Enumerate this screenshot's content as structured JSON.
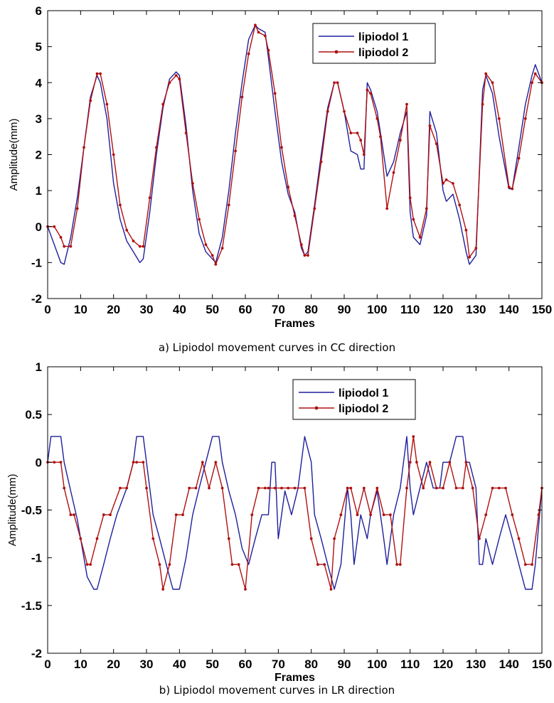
{
  "captions": {
    "a": "a) Lipiodol movement curves in CC direction",
    "b": "b) Lipiodol movement curves in LR direction"
  },
  "colors": {
    "series1": "#1f1f9c",
    "series2": "#b01010",
    "axis": "#000000"
  },
  "chart_data": [
    {
      "type": "line",
      "title": "",
      "xlabel": "Frames",
      "ylabel": "Amplitude(mm)",
      "xlim": [
        0,
        150
      ],
      "ylim": [
        -2,
        6
      ],
      "xticks": [
        0,
        10,
        20,
        30,
        40,
        50,
        60,
        70,
        80,
        90,
        100,
        110,
        120,
        130,
        140,
        150
      ],
      "yticks": [
        -2,
        -1,
        0,
        1,
        2,
        3,
        4,
        5,
        6
      ],
      "grid": false,
      "legend": "top-right",
      "x": [
        0,
        2,
        4,
        5,
        7,
        9,
        11,
        13,
        15,
        16,
        18,
        20,
        22,
        24,
        26,
        28,
        29,
        31,
        33,
        35,
        37,
        39,
        40,
        42,
        44,
        46,
        48,
        50,
        51,
        53,
        55,
        57,
        59,
        61,
        63,
        64,
        66,
        67,
        69,
        71,
        73,
        75,
        77,
        78,
        79,
        81,
        83,
        85,
        87,
        88,
        90,
        92,
        94,
        95,
        96,
        97,
        98,
        100,
        101,
        103,
        105,
        107,
        109,
        110,
        111,
        113,
        115,
        116,
        118,
        120,
        121,
        123,
        125,
        127,
        128,
        130,
        132,
        133,
        135,
        137,
        140,
        141,
        143,
        145,
        147,
        148,
        150
      ],
      "series": [
        {
          "name": "lipiodol 1",
          "values": [
            0,
            -0.5,
            -1.0,
            -1.05,
            -0.3,
            0.8,
            2.2,
            3.6,
            4.2,
            4.0,
            3.0,
            1.2,
            0.2,
            -0.4,
            -0.7,
            -1.0,
            -0.9,
            0.4,
            2.0,
            3.3,
            4.1,
            4.3,
            4.2,
            2.8,
            1.0,
            -0.2,
            -0.7,
            -0.9,
            -1.0,
            -0.3,
            1.0,
            2.6,
            4.0,
            5.2,
            5.6,
            5.5,
            5.4,
            4.7,
            3.2,
            1.8,
            0.9,
            0.4,
            -0.6,
            -0.8,
            -0.7,
            0.6,
            2.0,
            3.3,
            4.0,
            4.0,
            3.2,
            2.1,
            2.0,
            1.6,
            1.6,
            4.0,
            3.8,
            3.2,
            2.6,
            1.4,
            1.8,
            2.6,
            3.2,
            0.4,
            -0.3,
            -0.5,
            0.3,
            3.2,
            2.6,
            1.0,
            0.7,
            0.9,
            0.2,
            -0.7,
            -1.05,
            -0.8,
            3.8,
            4.2,
            3.7,
            2.5,
            1.05,
            1.05,
            2.2,
            3.4,
            4.2,
            4.5,
            4.0
          ]
        },
        {
          "name": "lipiodol 2",
          "values": [
            0,
            0,
            -0.3,
            -0.55,
            -0.55,
            0.5,
            2.2,
            3.5,
            4.25,
            4.25,
            3.4,
            2.0,
            0.6,
            -0.1,
            -0.4,
            -0.55,
            -0.55,
            0.8,
            2.2,
            3.4,
            4.0,
            4.2,
            4.1,
            2.6,
            1.2,
            0.2,
            -0.5,
            -0.8,
            -1.05,
            -0.6,
            0.6,
            2.1,
            3.6,
            4.8,
            5.6,
            5.4,
            5.3,
            4.9,
            3.7,
            2.2,
            1.1,
            0.3,
            -0.5,
            -0.8,
            -0.8,
            0.5,
            1.8,
            3.2,
            4.0,
            4.0,
            3.2,
            2.6,
            2.6,
            2.4,
            2.0,
            3.8,
            3.7,
            3.0,
            2.5,
            0.5,
            1.5,
            2.4,
            3.4,
            0.8,
            0.2,
            -0.3,
            0.5,
            2.8,
            2.3,
            1.2,
            1.3,
            1.2,
            0.6,
            -0.1,
            -0.85,
            -0.6,
            3.4,
            4.25,
            4.0,
            3.0,
            1.1,
            1.05,
            1.9,
            3.0,
            4.0,
            4.25,
            4.0
          ]
        }
      ]
    },
    {
      "type": "line",
      "title": "",
      "xlabel": "Frames",
      "ylabel": "Amplitude(mm)",
      "xlim": [
        0,
        150
      ],
      "ylim": [
        -2,
        1
      ],
      "xticks": [
        0,
        10,
        20,
        30,
        40,
        50,
        60,
        70,
        80,
        90,
        100,
        110,
        120,
        130,
        140,
        150
      ],
      "yticks": [
        -2,
        -1.5,
        -1,
        -0.5,
        0,
        0.5,
        1
      ],
      "grid": false,
      "legend": "top-right",
      "series": [
        {
          "name": "lipiodol 1",
          "x": [
            0,
            1,
            4,
            5,
            7,
            9,
            11,
            12,
            14,
            15,
            17,
            19,
            21,
            24,
            26,
            27,
            29,
            30,
            32,
            34,
            36,
            38,
            40,
            42,
            44,
            46,
            48,
            50,
            52,
            53,
            55,
            57,
            59,
            61,
            63,
            65,
            67,
            68,
            69,
            70,
            72,
            74,
            76,
            78,
            80,
            81,
            83,
            85,
            87,
            89,
            91,
            92,
            93,
            95,
            97,
            98,
            100,
            102,
            103,
            105,
            107,
            108,
            109,
            110,
            111,
            113,
            115,
            117,
            119,
            120,
            122,
            124,
            126,
            127,
            128,
            130,
            131,
            132,
            133,
            135,
            137,
            139,
            141,
            143,
            145,
            147,
            148,
            150
          ],
          "values": [
            0,
            0.27,
            0.27,
            0,
            -0.3,
            -0.6,
            -1.0,
            -1.2,
            -1.33,
            -1.33,
            -1.07,
            -0.8,
            -0.55,
            -0.27,
            0,
            0.27,
            0.27,
            0,
            -0.55,
            -0.8,
            -1.07,
            -1.33,
            -1.33,
            -1.0,
            -0.55,
            -0.27,
            0,
            0.27,
            0.27,
            0,
            -0.3,
            -0.55,
            -0.9,
            -1.07,
            -0.8,
            -0.55,
            -0.55,
            0,
            0,
            -0.8,
            -0.3,
            -0.55,
            -0.27,
            0.27,
            0,
            -0.55,
            -0.8,
            -1.07,
            -1.33,
            -1.07,
            -0.27,
            -0.55,
            -1.07,
            -0.55,
            -0.8,
            -0.55,
            -0.3,
            -0.8,
            -1.07,
            -0.55,
            -0.27,
            0,
            0.27,
            -0.27,
            -0.55,
            -0.27,
            0,
            -0.27,
            -0.27,
            0,
            0,
            0.27,
            0.27,
            0,
            0,
            -0.27,
            -1.07,
            -1.07,
            -0.8,
            -1.07,
            -0.8,
            -0.55,
            -0.8,
            -1.07,
            -1.33,
            -1.33,
            -1.07,
            -0.27
          ]
        },
        {
          "name": "lipiodol 2",
          "x": [
            0,
            2,
            4,
            5,
            7,
            8,
            10,
            12,
            13,
            15,
            17,
            19,
            22,
            24,
            26,
            27,
            29,
            30,
            32,
            34,
            35,
            37,
            39,
            41,
            43,
            45,
            47,
            49,
            51,
            53,
            55,
            56,
            58,
            60,
            62,
            64,
            66,
            67,
            69,
            71,
            73,
            75,
            78,
            80,
            82,
            84,
            86,
            87,
            89,
            91,
            92,
            94,
            96,
            98,
            100,
            102,
            104,
            106,
            107,
            109,
            110,
            111,
            112,
            114,
            116,
            118,
            120,
            122,
            124,
            126,
            127,
            129,
            131,
            133,
            135,
            137,
            139,
            141,
            143,
            145,
            147,
            149,
            150
          ],
          "values": [
            0,
            0,
            0,
            -0.27,
            -0.55,
            -0.55,
            -0.8,
            -1.07,
            -1.07,
            -0.8,
            -0.55,
            -0.55,
            -0.27,
            -0.27,
            0,
            0,
            0,
            -0.27,
            -0.8,
            -1.07,
            -1.33,
            -1.07,
            -0.55,
            -0.55,
            -0.27,
            -0.27,
            0,
            -0.27,
            0,
            -0.27,
            -0.8,
            -1.07,
            -1.07,
            -1.33,
            -0.55,
            -0.27,
            -0.27,
            -0.27,
            -0.27,
            -0.27,
            -0.27,
            -0.27,
            -0.27,
            -0.8,
            -1.07,
            -1.07,
            -1.33,
            -0.8,
            -0.55,
            -0.27,
            -0.27,
            -0.55,
            -0.27,
            -0.55,
            -0.27,
            -0.55,
            -0.55,
            -1.07,
            -1.07,
            -0.27,
            0,
            0.27,
            0,
            -0.27,
            0,
            -0.27,
            -0.27,
            0,
            -0.27,
            -0.27,
            0,
            -0.27,
            -0.8,
            -0.55,
            -0.27,
            -0.27,
            -0.27,
            -0.55,
            -0.8,
            -1.07,
            -1.07,
            -0.55,
            -0.27
          ]
        }
      ]
    }
  ]
}
